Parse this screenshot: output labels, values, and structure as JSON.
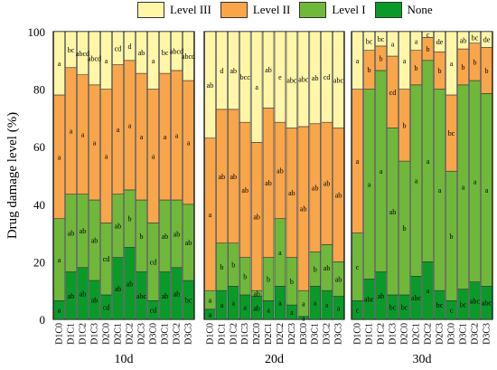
{
  "chart_data": {
    "type": "bar",
    "stacked": true,
    "ylabel": "Drug damage level (%)",
    "ylim": [
      0,
      100
    ],
    "yticks": [
      0,
      20,
      40,
      60,
      80,
      100
    ],
    "grid": false,
    "legend_position": "top",
    "series_order_bottom_to_top": [
      "None",
      "Level I",
      "Level II",
      "Level III"
    ],
    "legend": [
      {
        "name": "Level III",
        "color": "#fff6a8"
      },
      {
        "name": "Level II",
        "color": "#f9a54a"
      },
      {
        "name": "Level I",
        "color": "#6fb83a"
      },
      {
        "name": "None",
        "color": "#0a9a2a"
      }
    ],
    "groups": [
      {
        "name": "10d",
        "categories": [
          "D1C0",
          "D1C1",
          "D1C2",
          "D1C3",
          "D2C0",
          "D2C1",
          "D2C2",
          "D2C3",
          "D3C0",
          "D3C1",
          "D3C2",
          "D3C3"
        ],
        "none": [
          6.5,
          16.5,
          18,
          13.5,
          8.5,
          21.5,
          25,
          16.5,
          6.5,
          16.5,
          18,
          13.5
        ],
        "level1": [
          28.5,
          27,
          25.5,
          28,
          25,
          22,
          20,
          25,
          27,
          25,
          23.5,
          26.5
        ],
        "level2": [
          43,
          44,
          41.5,
          40,
          46.5,
          45,
          45,
          44,
          46.5,
          44,
          45,
          43
        ],
        "level3": [
          22,
          12.5,
          15,
          18.5,
          20,
          11.5,
          10,
          14.5,
          20,
          14.5,
          13.5,
          17
        ],
        "labels": {
          "none": [
            "a",
            "ab",
            "ab",
            "ab",
            "cd",
            "ab",
            "ab",
            "abc",
            "cd",
            "ab",
            "ab",
            "bc"
          ],
          "level1": [
            "a",
            "ab",
            "ab",
            "ab",
            "cd",
            "ab",
            "b",
            "b",
            "cd",
            "ab",
            "ab",
            "ab"
          ],
          "level2": [
            "a",
            "a",
            "a",
            "a",
            "a",
            "a",
            "a",
            "a",
            "a",
            "a",
            "a",
            "a"
          ],
          "level3": [
            "a",
            "bc",
            "abcd",
            "abcd",
            "a",
            "cd",
            "d",
            "ab",
            "a",
            "bc",
            "abcd",
            "abcd"
          ]
        }
      },
      {
        "name": "20d",
        "categories": [
          "D1C0",
          "D1C1",
          "D1C2",
          "D1C3",
          "D2C0",
          "D2C1",
          "D2C2",
          "D2C3",
          "D3C0",
          "D3C1",
          "D3C2",
          "D3C3"
        ],
        "none": [
          3.5,
          10,
          11.5,
          8.5,
          8,
          6.5,
          11.5,
          5,
          1,
          11.5,
          10,
          8
        ],
        "level1": [
          6.5,
          16.5,
          15,
          13,
          2,
          15,
          23.5,
          16.5,
          9,
          12,
          16,
          12
        ],
        "level2": [
          53,
          46.5,
          46.5,
          47,
          51.5,
          52,
          33.5,
          45,
          57,
          44.5,
          42.5,
          46.5
        ],
        "level3": [
          37,
          27,
          27,
          31.5,
          38.5,
          26.5,
          31.5,
          33.5,
          33,
          32,
          31.5,
          33.5
        ],
        "labels": {
          "none": [
            "a",
            "a",
            "a",
            "a",
            "ab",
            "a",
            "a",
            "a",
            "a",
            "a",
            "a",
            "a"
          ],
          "level1": [
            "a",
            "b",
            "b",
            "b",
            "ab",
            "b",
            "a",
            "b",
            "a",
            "b",
            "ab",
            "ab"
          ],
          "level2": [
            "a",
            "ab",
            "ab",
            "ab",
            "ab",
            "ab",
            "ab",
            "ab",
            "ab",
            "ab",
            "ab",
            "ab"
          ],
          "level3": [
            "ab",
            "d",
            "ab",
            "bcc",
            "a",
            "ab",
            "e",
            "abc",
            "abc",
            "ab",
            "cd",
            "abc"
          ]
        }
      },
      {
        "name": "30d",
        "categories": [
          "D1C0",
          "D1C1",
          "D1C2",
          "D1C3",
          "D2C0",
          "D2C1",
          "D2C2",
          "D2C3",
          "D3C0",
          "D3C1",
          "D3C2",
          "D3C3"
        ],
        "none": [
          6.5,
          14,
          16.5,
          8.5,
          8.5,
          15,
          20,
          10,
          6.5,
          10.5,
          13,
          11.5
        ],
        "level1": [
          23.5,
          66,
          70,
          58,
          46.5,
          66.5,
          70,
          70,
          45,
          71,
          70,
          67
        ],
        "level2": [
          50,
          13.5,
          8.5,
          25,
          25,
          12,
          8,
          13,
          26.5,
          12.5,
          13,
          16
        ],
        "level3": [
          20,
          6.5,
          5,
          8.5,
          20,
          6.5,
          2,
          7,
          22,
          6,
          4,
          5.5
        ],
        "labels": {
          "none": [
            "c",
            "abc",
            "ab",
            "bc",
            "bc",
            "abc",
            "a",
            "bc",
            "c",
            "bc",
            "abc",
            "abc"
          ],
          "level1": [
            "c",
            "a",
            "a",
            "ab",
            "b",
            "a",
            "a",
            "a",
            "b",
            "a",
            "a",
            "a"
          ],
          "level2": [
            "a",
            "b",
            "b",
            "cd",
            "b",
            "b",
            "b",
            "b",
            "bc",
            "b",
            "b",
            "b"
          ],
          "level3": [
            "a",
            "bc",
            "bc",
            "a",
            "a",
            "a",
            "c",
            "de",
            "a",
            "ab",
            "bc",
            "de"
          ]
        }
      }
    ]
  }
}
